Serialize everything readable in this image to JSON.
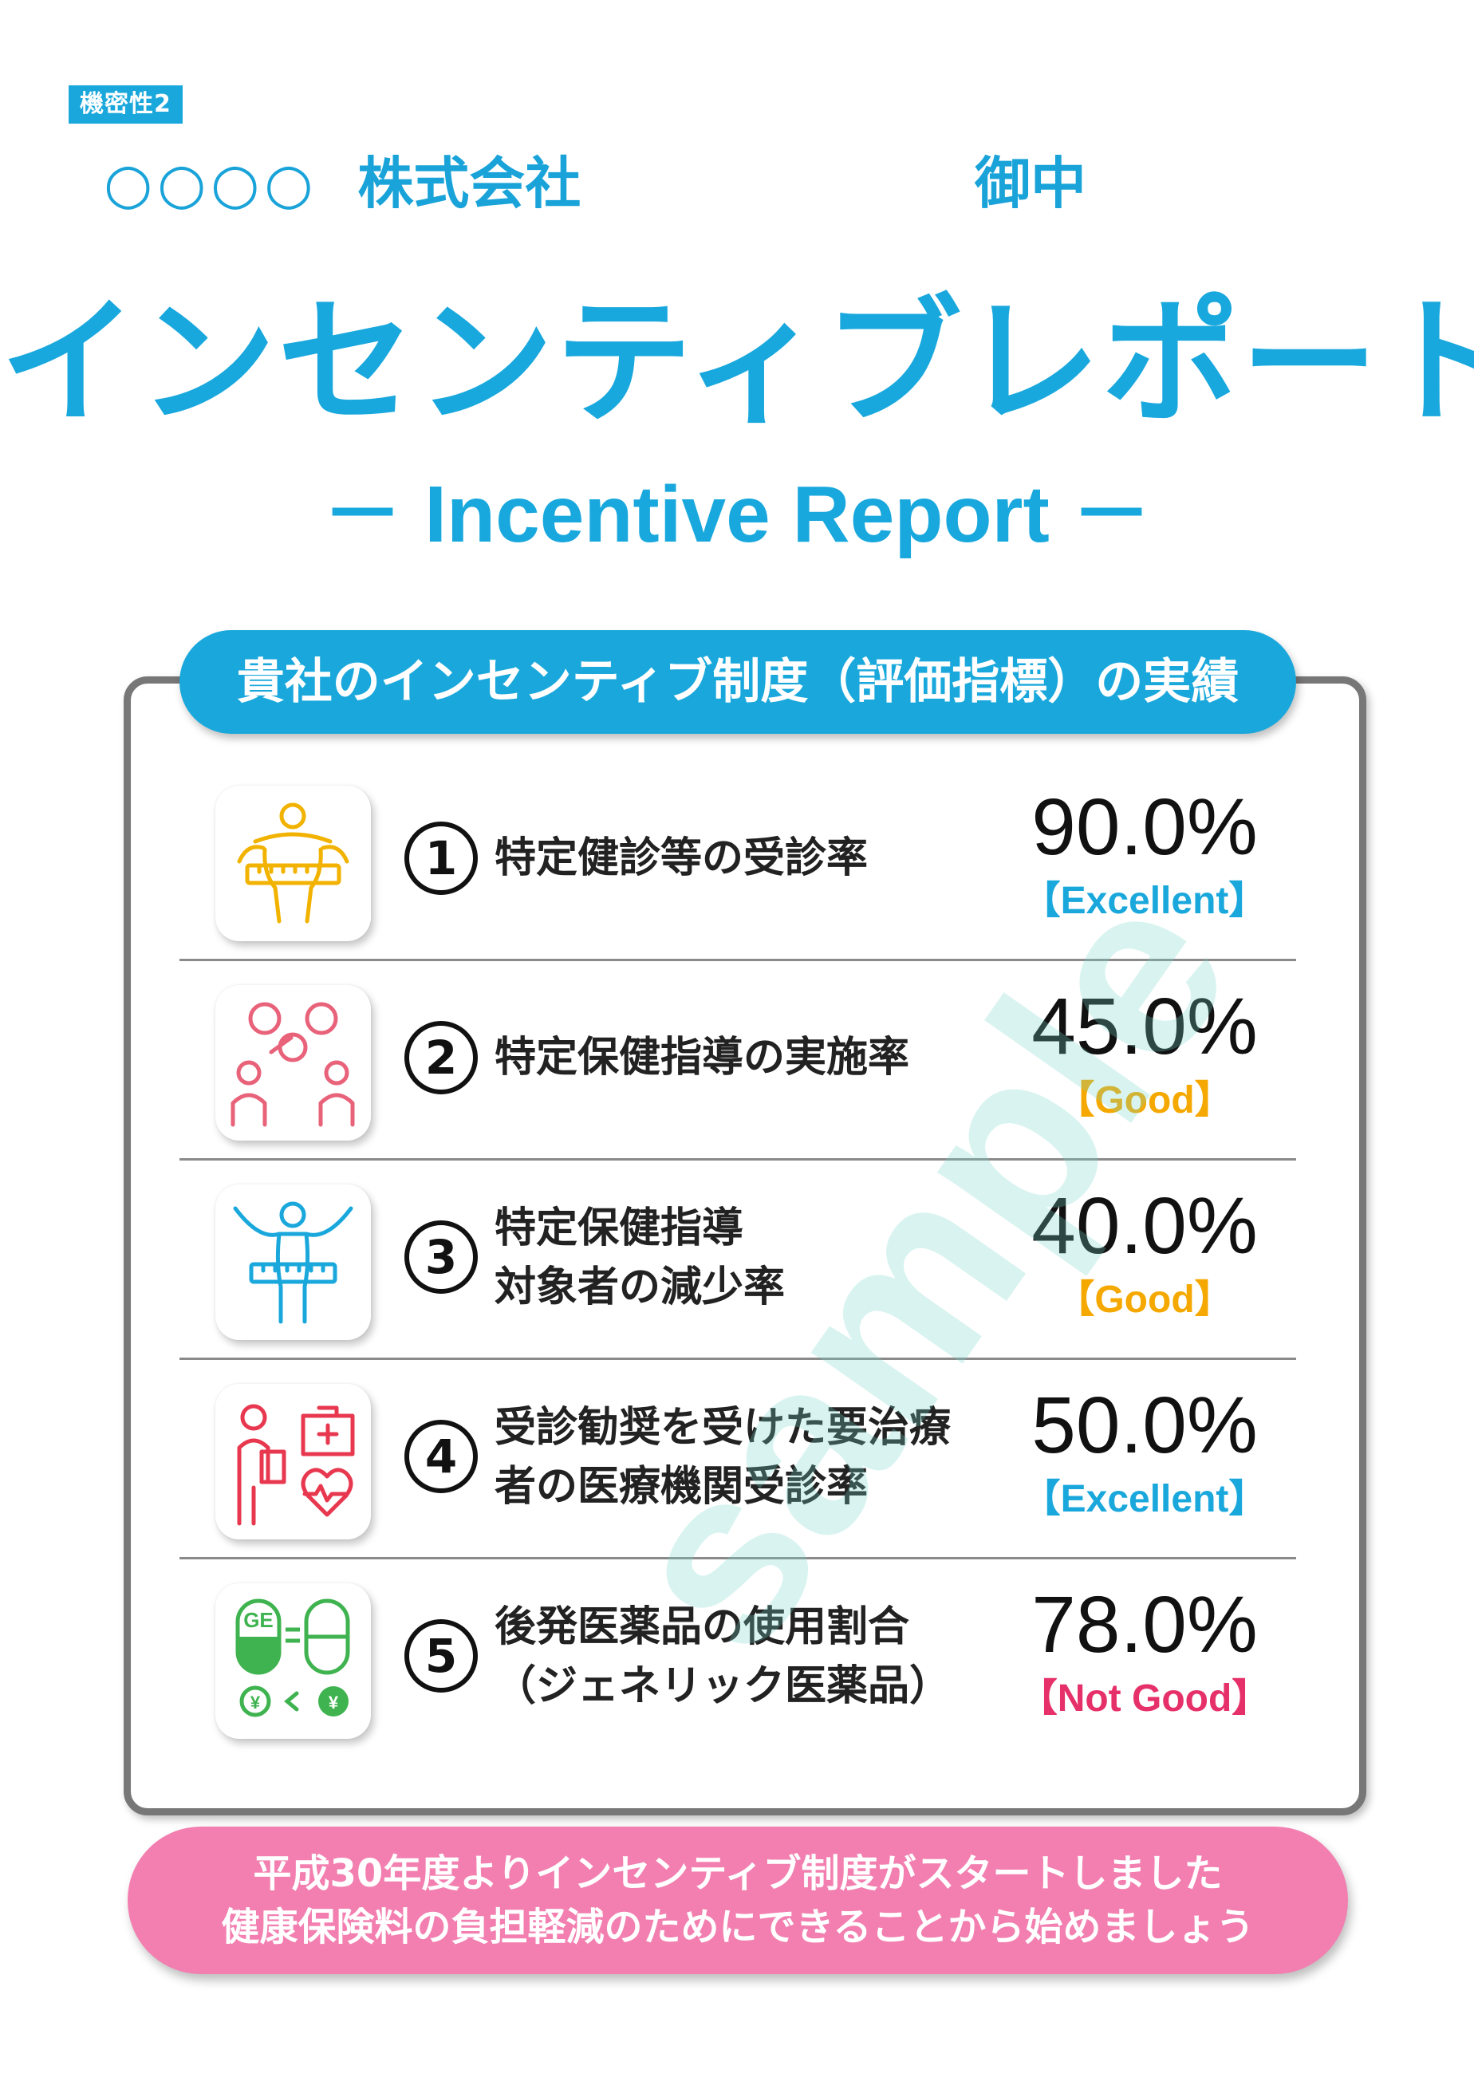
{
  "header": {
    "confidentiality_tag": "機密性2",
    "recipient_circles": "○○○○",
    "recipient_company": "株式会社",
    "honorific": "御中",
    "title_jp": "インセンティブレポート",
    "title_en": "－ Incentive Report －"
  },
  "panel": {
    "header": "貴社のインセンティブ制度（評価指標）の実績",
    "watermark": "sample",
    "rows": [
      {
        "num": "1",
        "line1": "特定健診等の受診率",
        "line2": "",
        "value": "90.0%",
        "rating": "【Excellent】",
        "rating_color": "#1aa8dc",
        "icon": "waist-measure-icon",
        "icon_color": "#f2b200"
      },
      {
        "num": "2",
        "line1": "特定保健指導の実施率",
        "line2": "",
        "value": "45.0%",
        "rating": "【Good】",
        "rating_color": "#f5a800",
        "icon": "health-consultation-icon",
        "icon_color": "#e8627a"
      },
      {
        "num": "3",
        "line1": "特定保健指導",
        "line2": "対象者の減少率",
        "value": "40.0%",
        "rating": "【Good】",
        "rating_color": "#f5a800",
        "icon": "waist-reduction-icon",
        "icon_color": "#1aa8dc"
      },
      {
        "num": "4",
        "line1": "受診勧奨を受けた要治療",
        "line2": "者の医療機関受診率",
        "value": "50.0%",
        "rating": "【Excellent】",
        "rating_color": "#1aa8dc",
        "icon": "hospital-visit-icon",
        "icon_color": "#e8384f"
      },
      {
        "num": "5",
        "line1": "後発医薬品の使用割合",
        "line2": "（ジェネリック医薬品）",
        "value": "78.0%",
        "rating": "【Not Good】",
        "rating_color": "#e6306a",
        "icon": "generic-medicine-icon",
        "icon_color": "#3fb34f"
      }
    ]
  },
  "footer": {
    "line1": "平成30年度よりインセンティブ制度がスタートしました",
    "line2": "健康保険料の負担軽減のためにできることから始めましょう"
  }
}
